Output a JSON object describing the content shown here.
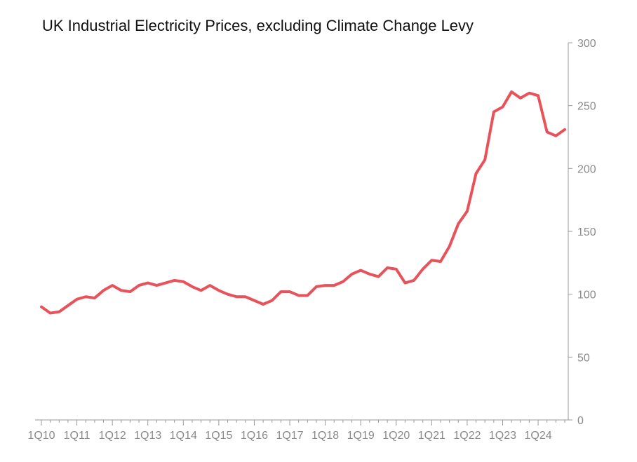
{
  "chart_data": {
    "type": "line",
    "title": "UK Industrial Electricity Prices, excluding Climate Change Levy",
    "xlabel": "",
    "ylabel": "",
    "ylim": [
      0,
      300
    ],
    "yticks": [
      0,
      50,
      100,
      150,
      200,
      250,
      300
    ],
    "y_axis_side": "right",
    "grid": false,
    "legend": "none",
    "line_color": "#e8525a",
    "x_tick_labels": [
      "1Q10",
      "1Q11",
      "1Q12",
      "1Q13",
      "1Q14",
      "1Q15",
      "1Q16",
      "1Q17",
      "1Q18",
      "1Q19",
      "1Q20",
      "1Q21",
      "1Q22",
      "1Q23",
      "1Q24"
    ],
    "x_tick_indices": [
      0,
      4,
      8,
      12,
      16,
      20,
      24,
      28,
      32,
      36,
      40,
      44,
      48,
      52,
      56
    ],
    "series": [
      {
        "values": [
          90,
          85,
          86,
          91,
          96,
          98,
          97,
          103,
          107,
          103,
          102,
          107,
          109,
          107,
          109,
          111,
          110,
          106,
          103,
          107,
          103,
          100,
          98,
          98,
          95,
          92,
          95,
          102,
          102,
          99,
          99,
          106,
          107,
          107,
          110,
          116,
          119,
          116,
          114,
          121,
          120,
          109,
          111,
          120,
          127,
          126,
          138,
          156,
          166,
          196,
          207,
          245,
          249,
          261,
          256,
          260,
          258,
          229,
          226,
          231
        ]
      }
    ]
  }
}
